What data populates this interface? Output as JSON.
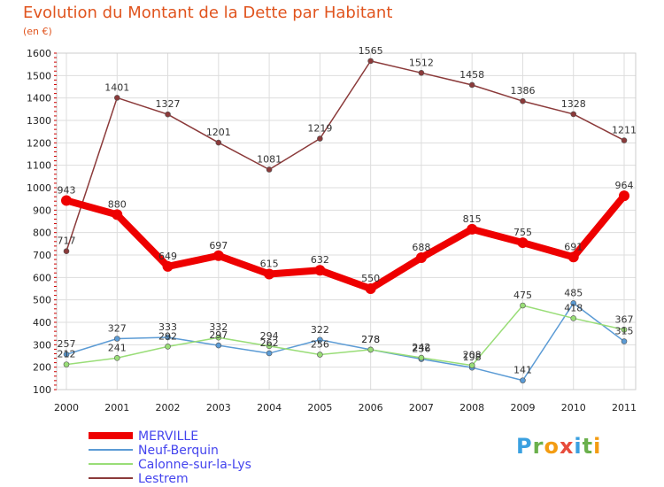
{
  "header": {
    "title": "Evolution du Montant de la Dette par Habitant",
    "subtitle": "(en €)"
  },
  "colors": {
    "title": "#e0541e",
    "grid": "#dddddd",
    "axis_text": "#222222",
    "tick_red": "#cc0000",
    "legend_text": "#4444ee"
  },
  "logo": {
    "letters": [
      "P",
      "r",
      "o",
      "x",
      "i",
      "t",
      "i"
    ],
    "colors": [
      "#3aa0e0",
      "#6ab04c",
      "#f39c12",
      "#e74c3c",
      "#3aa0e0",
      "#6ab04c",
      "#f39c12"
    ]
  },
  "chart_data": {
    "type": "line",
    "title": "Evolution du Montant de la Dette par Habitant",
    "subtitle": "(en €)",
    "xlabel": "",
    "ylabel": "",
    "x": [
      "2000",
      "2001",
      "2002",
      "2003",
      "2004",
      "2005",
      "2006",
      "2007",
      "2008",
      "2009",
      "2010",
      "2011"
    ],
    "ylim": [
      100,
      1600
    ],
    "yticks": [
      100,
      200,
      300,
      400,
      500,
      600,
      700,
      800,
      900,
      1000,
      1100,
      1200,
      1300,
      1400,
      1500,
      1600
    ],
    "grid": true,
    "legend": "bottom-left",
    "series": [
      {
        "name": "MERVILLE",
        "color": "#ee0000",
        "values": [
          943,
          880,
          649,
          697,
          615,
          632,
          550,
          688,
          815,
          755,
          691,
          964
        ],
        "labels": [
          "943",
          "880",
          "649",
          "697",
          "615",
          "632",
          "550",
          "688",
          "815",
          "755",
          "691",
          "964"
        ]
      },
      {
        "name": "Neuf-Berquin",
        "color": "#5b9bd5",
        "values": [
          257,
          327,
          333,
          297,
          262,
          322,
          278,
          236,
          198,
          141,
          485,
          315
        ],
        "labels": [
          "257",
          "327",
          "333",
          "297",
          "262",
          "322",
          "278",
          "236",
          "198",
          "141",
          "485",
          "315"
        ]
      },
      {
        "name": "Calonne-sur-la-Lys",
        "color": "#99dd77",
        "values": [
          212,
          241,
          292,
          332,
          294,
          256,
          278,
          242,
          208,
          475,
          418,
          367
        ],
        "labels": [
          "212",
          "241",
          "292",
          "332",
          "294",
          "256",
          "278",
          "242",
          "208",
          "475",
          "418",
          "367"
        ]
      },
      {
        "name": "Lestrem",
        "color": "#8b3a3a",
        "values": [
          717,
          1401,
          1327,
          1201,
          1081,
          1219,
          1565,
          1512,
          1458,
          1386,
          1328,
          1211
        ],
        "labels": [
          "717",
          "1401",
          "1327",
          "1201",
          "1081",
          "1219",
          "1565",
          "1512",
          "1458",
          "1386",
          "1328",
          "1211"
        ]
      }
    ]
  }
}
